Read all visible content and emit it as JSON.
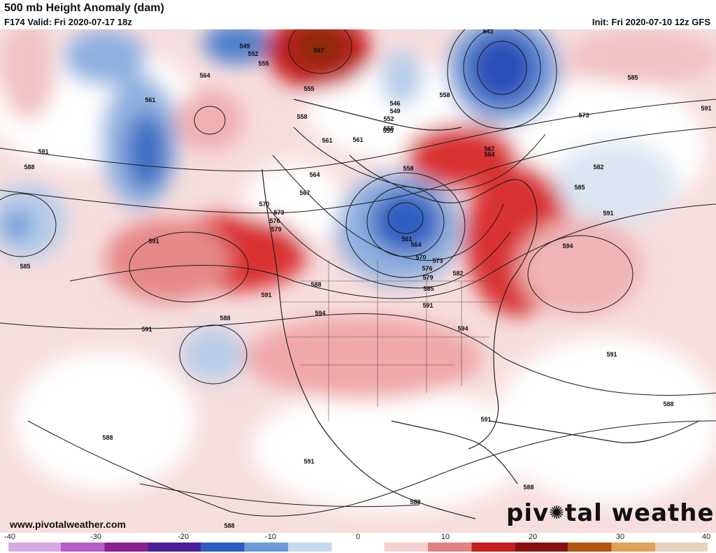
{
  "header": {
    "title": "500 mb Height Anomaly (dam)",
    "valid": "F174 Valid: Fri 2020-07-17 18z",
    "init": "Init: Fri 2020-07-10 12z GFS"
  },
  "footer": {
    "site": "www.pivotalweather.com",
    "brand_left": "piv",
    "brand_right": "tal weather"
  },
  "colorbar": {
    "min": -40,
    "max": 40,
    "ticks": [
      "-40",
      "-30",
      "-20",
      "-10",
      "0",
      "10",
      "20",
      "30",
      "40"
    ],
    "colors": [
      "#d9a9e6",
      "#b85cc9",
      "#8a1f8f",
      "#4b1d9a",
      "#2b5cc4",
      "#6f9ad8",
      "#c7daf0",
      "#ffffff",
      "#f5d0d0",
      "#e58080",
      "#c41e1e",
      "#8a1010",
      "#b5560f",
      "#e0a35a",
      "#e8d2c0"
    ]
  },
  "contour_labels": [
    {
      "text": "549"
    },
    {
      "text": "552"
    },
    {
      "text": "555"
    },
    {
      "text": "567"
    },
    {
      "text": "543"
    },
    {
      "text": "564"
    },
    {
      "text": "561"
    },
    {
      "text": "555"
    },
    {
      "text": "546"
    },
    {
      "text": "549"
    },
    {
      "text": "552"
    },
    {
      "text": "555"
    },
    {
      "text": "558"
    },
    {
      "text": "555"
    },
    {
      "text": "561"
    },
    {
      "text": "564"
    },
    {
      "text": "567"
    },
    {
      "text": "573"
    },
    {
      "text": "585"
    },
    {
      "text": "591"
    },
    {
      "text": "558"
    },
    {
      "text": "561"
    },
    {
      "text": "591"
    },
    {
      "text": "588"
    },
    {
      "text": "564"
    },
    {
      "text": "567"
    },
    {
      "text": "558"
    },
    {
      "text": "582"
    },
    {
      "text": "585"
    },
    {
      "text": "570"
    },
    {
      "text": "573"
    },
    {
      "text": "576"
    },
    {
      "text": "579"
    },
    {
      "text": "591"
    },
    {
      "text": "585"
    },
    {
      "text": "591"
    },
    {
      "text": "561"
    },
    {
      "text": "564"
    },
    {
      "text": "570"
    },
    {
      "text": "573"
    },
    {
      "text": "576"
    },
    {
      "text": "579"
    },
    {
      "text": "582"
    },
    {
      "text": "585"
    },
    {
      "text": "594"
    },
    {
      "text": "588"
    },
    {
      "text": "591"
    },
    {
      "text": "594"
    },
    {
      "text": "591"
    },
    {
      "text": "591"
    },
    {
      "text": "588"
    },
    {
      "text": "594"
    },
    {
      "text": "591"
    },
    {
      "text": "591"
    },
    {
      "text": "588"
    },
    {
      "text": "588"
    },
    {
      "text": "591"
    },
    {
      "text": "588"
    },
    {
      "text": "588"
    },
    {
      "text": "588"
    }
  ]
}
